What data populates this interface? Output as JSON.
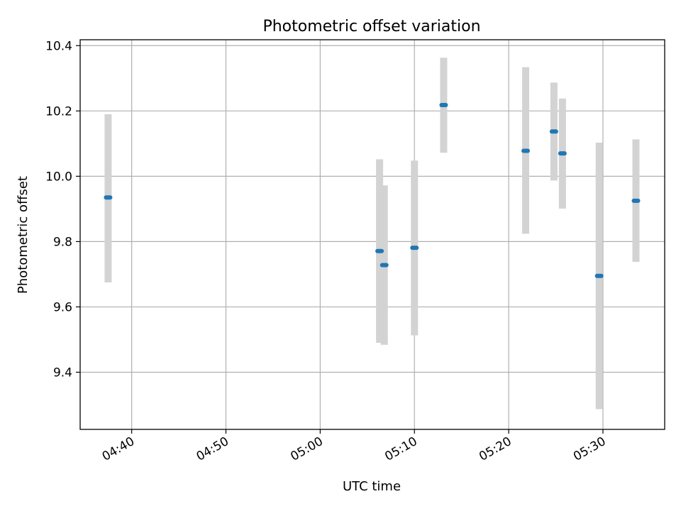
{
  "chart_data": {
    "type": "scatter",
    "title": "Photometric offset variation",
    "xlabel": "UTC time",
    "ylabel": "Photometric offset",
    "x_tick_labels": [
      "04:40",
      "04:50",
      "05:00",
      "05:10",
      "05:20",
      "05:30"
    ],
    "x_ticks": [
      "04:40",
      "04:50",
      "05:00",
      "05:10",
      "05:20",
      "05:30"
    ],
    "xlim": [
      "04:34:32",
      "05:36:33"
    ],
    "y_ticks": [
      9.4,
      9.6,
      9.8,
      10.0,
      10.2,
      10.4
    ],
    "ylim": [
      9.225,
      10.418
    ],
    "grid": true,
    "error_bar_color": "#d3d3d3",
    "marker_color": "#1f77b4",
    "points": [
      {
        "x": "04:37:30",
        "y": 9.935,
        "y_low": 9.675,
        "y_high": 10.19
      },
      {
        "x": "05:06:18",
        "y": 9.771,
        "y_low": 9.49,
        "y_high": 10.052
      },
      {
        "x": "05:06:48",
        "y": 9.728,
        "y_low": 9.484,
        "y_high": 9.972
      },
      {
        "x": "05:10:00",
        "y": 9.781,
        "y_low": 9.513,
        "y_high": 10.048
      },
      {
        "x": "05:13:06",
        "y": 10.218,
        "y_low": 10.072,
        "y_high": 10.363
      },
      {
        "x": "05:21:48",
        "y": 10.078,
        "y_low": 9.824,
        "y_high": 10.334
      },
      {
        "x": "05:24:48",
        "y": 10.137,
        "y_low": 9.987,
        "y_high": 10.287
      },
      {
        "x": "05:25:42",
        "y": 10.07,
        "y_low": 9.901,
        "y_high": 10.238
      },
      {
        "x": "05:29:36",
        "y": 9.695,
        "y_low": 9.287,
        "y_high": 10.103
      },
      {
        "x": "05:33:30",
        "y": 9.925,
        "y_low": 9.738,
        "y_high": 10.113
      }
    ]
  }
}
